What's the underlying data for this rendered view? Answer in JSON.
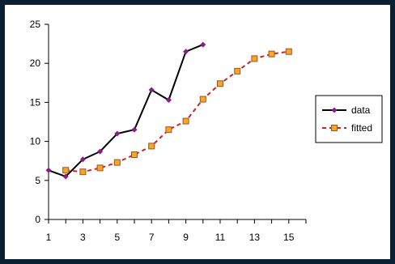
{
  "chart_data": {
    "type": "line",
    "title": "",
    "xlabel": "",
    "ylabel": "",
    "xlim": [
      1,
      16
    ],
    "ylim": [
      0,
      25
    ],
    "x_ticks": [
      1,
      3,
      5,
      7,
      9,
      11,
      13,
      15
    ],
    "y_ticks": [
      0,
      5,
      10,
      15,
      20,
      25
    ],
    "grid": false,
    "legend_position": "right",
    "series": [
      {
        "name": "data",
        "style": "solid-line-diamond-markers",
        "color": "#000000",
        "marker_color": "#8b1a8b",
        "x": [
          1,
          2,
          3,
          4,
          5,
          6,
          7,
          8,
          9,
          10
        ],
        "y": [
          6.3,
          5.5,
          7.7,
          8.7,
          11.0,
          11.5,
          16.6,
          15.3,
          21.5,
          22.4
        ]
      },
      {
        "name": "fitted",
        "style": "dashed-line-square-markers",
        "color": "#cc2222",
        "marker_color": "#f5a623",
        "marker_edge": "#a0522d",
        "x": [
          2,
          3,
          4,
          5,
          6,
          7,
          8,
          9,
          10,
          11,
          12,
          13,
          14,
          15
        ],
        "y": [
          6.3,
          6.1,
          6.6,
          7.3,
          8.3,
          9.4,
          11.5,
          12.6,
          15.4,
          17.4,
          19.0,
          20.6,
          21.2,
          21.5
        ]
      }
    ]
  }
}
